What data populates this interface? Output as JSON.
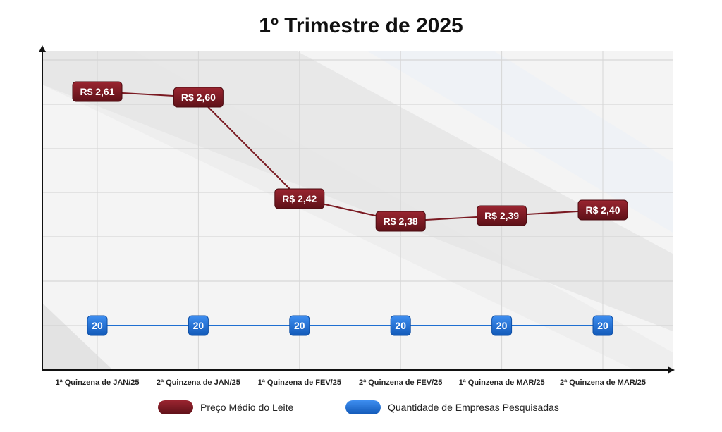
{
  "chart_data": {
    "type": "line",
    "title": "1º Trimestre de 2025",
    "categories": [
      "1ª Quinzena de JAN/25",
      "2ª Quinzena de JAN/25",
      "1ª Quinzena de FEV/25",
      "2ª Quinzena de FEV/25",
      "1ª Quinzena de MAR/25",
      "2ª Quinzena de MAR/25"
    ],
    "series": [
      {
        "name": "Preço Médio do Leite",
        "values": [
          2.61,
          2.6,
          2.42,
          2.38,
          2.39,
          2.4
        ],
        "labels": [
          "R$ 2,61",
          "R$ 2,60",
          "R$ 2,42",
          "R$ 2,38",
          "R$ 2,39",
          "R$ 2,40"
        ],
        "color": "#7a1a22"
      },
      {
        "name": "Quantidade de Empresas Pesquisadas",
        "values": [
          20,
          20,
          20,
          20,
          20,
          20
        ],
        "labels": [
          "20",
          "20",
          "20",
          "20",
          "20",
          "20"
        ],
        "color": "#1f6fd1"
      }
    ],
    "grid": true,
    "legend_position": "bottom"
  }
}
